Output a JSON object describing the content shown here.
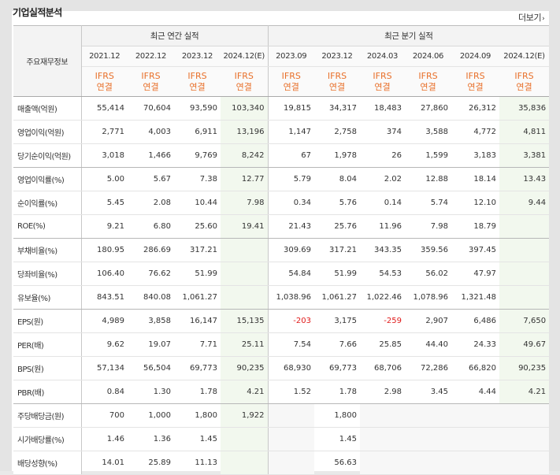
{
  "section_title": "기업실적분석",
  "more_label": "더보기",
  "more_chevron": "›",
  "header": {
    "corner_label": "주요재무정보",
    "annual_group": "최근 연간 실적",
    "quarter_group": "최근 분기 실적",
    "periods": [
      "2021.12",
      "2022.12",
      "2023.12",
      "2024.12(E)",
      "2023.09",
      "2023.12",
      "2024.03",
      "2024.06",
      "2024.09",
      "2024.12(E)"
    ],
    "ifrs_top": "IFRS",
    "ifrs_bottom": "연결"
  },
  "colors": {
    "accent": "#e8702a",
    "negative": "#e01b1b",
    "estimate_bg": "#f2f8ee"
  },
  "rows": [
    {
      "label": "매출액(억원)",
      "values": [
        "55,414",
        "70,604",
        "93,590",
        "103,340",
        "19,815",
        "34,317",
        "18,483",
        "27,860",
        "26,312",
        "35,836"
      ]
    },
    {
      "label": "영업이익(억원)",
      "values": [
        "2,771",
        "4,003",
        "6,911",
        "13,196",
        "1,147",
        "2,758",
        "374",
        "3,588",
        "4,772",
        "4,811"
      ]
    },
    {
      "label": "당기순이익(억원)",
      "values": [
        "3,018",
        "1,466",
        "9,769",
        "8,242",
        "67",
        "1,978",
        "26",
        "1,599",
        "3,183",
        "3,381"
      ]
    },
    {
      "label": "영업이익률(%)",
      "values": [
        "5.00",
        "5.67",
        "7.38",
        "12.77",
        "5.79",
        "8.04",
        "2.02",
        "12.88",
        "18.14",
        "13.43"
      ]
    },
    {
      "label": "순이익률(%)",
      "values": [
        "5.45",
        "2.08",
        "10.44",
        "7.98",
        "0.34",
        "5.76",
        "0.14",
        "5.74",
        "12.10",
        "9.44"
      ]
    },
    {
      "label": "ROE(%)",
      "values": [
        "9.21",
        "6.80",
        "25.60",
        "19.41",
        "21.43",
        "25.76",
        "11.96",
        "7.98",
        "18.79",
        ""
      ]
    },
    {
      "label": "부채비율(%)",
      "values": [
        "180.95",
        "286.69",
        "317.21",
        "",
        "309.69",
        "317.21",
        "343.35",
        "359.56",
        "397.45",
        ""
      ]
    },
    {
      "label": "당좌비율(%)",
      "values": [
        "106.40",
        "76.62",
        "51.99",
        "",
        "54.84",
        "51.99",
        "54.53",
        "56.02",
        "47.97",
        ""
      ]
    },
    {
      "label": "유보율(%)",
      "values": [
        "843.51",
        "840.08",
        "1,061.27",
        "",
        "1,038.96",
        "1,061.27",
        "1,022.46",
        "1,078.96",
        "1,321.48",
        ""
      ]
    },
    {
      "label": "EPS(원)",
      "values": [
        "4,989",
        "3,858",
        "16,147",
        "15,135",
        "-203",
        "3,175",
        "-259",
        "2,907",
        "6,486",
        "7,650"
      ]
    },
    {
      "label": "PER(배)",
      "values": [
        "9.62",
        "19.07",
        "7.71",
        "25.11",
        "7.54",
        "7.66",
        "25.85",
        "44.40",
        "24.33",
        "49.67"
      ]
    },
    {
      "label": "BPS(원)",
      "values": [
        "57,134",
        "56,504",
        "69,773",
        "90,235",
        "68,930",
        "69,773",
        "68,706",
        "72,286",
        "66,820",
        "90,235"
      ]
    },
    {
      "label": "PBR(배)",
      "values": [
        "0.84",
        "1.30",
        "1.78",
        "4.21",
        "1.52",
        "1.78",
        "2.98",
        "3.45",
        "4.44",
        "4.21"
      ]
    },
    {
      "label": "주당배당금(원)",
      "values": [
        "700",
        "1,000",
        "1,800",
        "1,922",
        "",
        "1,800",
        "",
        "",
        "",
        ""
      ]
    },
    {
      "label": "시가배당률(%)",
      "values": [
        "1.46",
        "1.36",
        "1.45",
        "",
        "",
        "1.45",
        "",
        "",
        "",
        ""
      ]
    },
    {
      "label": "배당성향(%)",
      "values": [
        "14.01",
        "25.89",
        "11.13",
        "",
        "",
        "56.63",
        "",
        "",
        "",
        ""
      ]
    }
  ]
}
